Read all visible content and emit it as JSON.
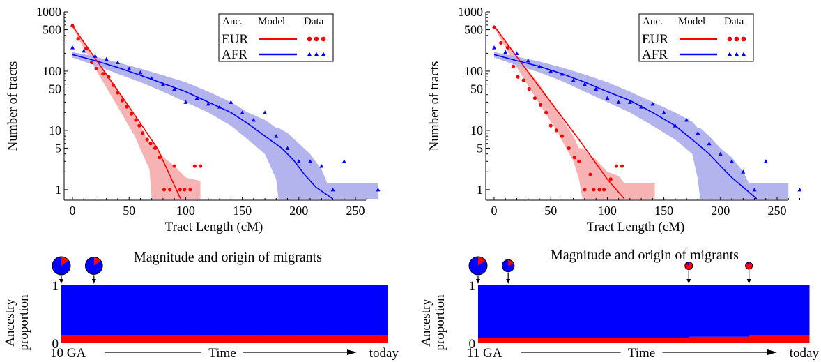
{
  "colors": {
    "eur": "#ff0000",
    "afr": "#0000ff",
    "eur_band": "#f7b3b3",
    "afr_band": "#b3b3ee",
    "axis": "#000000"
  },
  "chart_data": [
    {
      "type": "scatter",
      "yscale": "log",
      "xlabel": "Tract Length (cM)",
      "ylabel": "Number of tracts",
      "xlim": [
        -5,
        275
      ],
      "ylim": [
        0.7,
        1000
      ],
      "x_ticks": [
        0,
        50,
        100,
        150,
        200,
        250
      ],
      "y_ticks": [
        1,
        5,
        10,
        50,
        100,
        500,
        1000
      ],
      "legend": {
        "placement": "top-right",
        "headers": [
          "Anc.",
          "Model",
          "Data"
        ],
        "entries": [
          {
            "label": "EUR",
            "key": "eur"
          },
          {
            "label": "AFR",
            "key": "afr"
          }
        ]
      },
      "series": [
        {
          "name": "EUR",
          "key": "eur",
          "model_x": [
            0,
            25,
            50,
            75,
            95.5
          ],
          "model_y": [
            580,
            120,
            25,
            5,
            0.7
          ],
          "band_x": [
            0,
            20,
            40,
            55,
            68,
            70,
            80,
            90,
            100,
            113
          ],
          "band_upper": [
            600,
            170,
            50,
            17,
            6.5,
            6.5,
            3.6,
            2.5,
            1.6,
            1.4
          ],
          "band_lower": [
            540,
            110,
            25,
            8,
            2.2,
            0.7,
            0.7,
            0.7,
            0.7,
            0.7
          ],
          "data_x": [
            0,
            5,
            12,
            17,
            21,
            27,
            32,
            36,
            40,
            44,
            48,
            52,
            56,
            59,
            62,
            66,
            69,
            73,
            77,
            81,
            86,
            90,
            95,
            99,
            104,
            108,
            113
          ],
          "data_y": [
            580,
            350,
            240,
            140,
            110,
            90,
            80,
            58,
            43,
            32,
            25,
            19,
            15,
            12,
            9,
            7,
            6,
            5,
            3.5,
            1,
            1,
            2.5,
            1,
            1,
            1,
            2.5,
            2.5
          ]
        },
        {
          "name": "AFR",
          "key": "afr",
          "model_x": [
            0,
            20,
            40,
            60,
            80,
            100,
            120,
            140,
            155,
            170,
            185,
            195,
            205,
            215,
            230
          ],
          "model_y": [
            190,
            150,
            115,
            85,
            62,
            45,
            30,
            20,
            13,
            8,
            5,
            3.2,
            1.8,
            1.1,
            0.7
          ],
          "band_x": [
            0,
            20,
            40,
            60,
            80,
            100,
            120,
            140,
            155,
            170,
            180,
            182,
            190,
            200,
            210,
            220,
            225,
            230,
            270
          ],
          "band_upper": [
            210,
            175,
            140,
            110,
            85,
            65,
            45,
            30,
            20,
            15,
            11,
            11,
            9,
            6,
            4,
            2.2,
            1.3,
            1.3,
            1.3
          ],
          "band_lower": [
            170,
            125,
            90,
            65,
            45,
            30,
            20,
            12,
            7,
            4,
            1.5,
            0.7,
            0.7,
            0.7,
            0.7,
            0.7,
            0.7,
            0.7,
            0.7
          ],
          "data_x": [
            0,
            10,
            20,
            30,
            40,
            50,
            60,
            70,
            80,
            90,
            100,
            110,
            120,
            130,
            140,
            150,
            160,
            170,
            180,
            190,
            200,
            210,
            220,
            230,
            240,
            270
          ],
          "data_y": [
            250,
            220,
            180,
            160,
            140,
            110,
            95,
            75,
            60,
            50,
            30,
            35,
            28,
            25,
            30,
            20,
            15,
            20,
            8,
            5,
            3,
            3,
            2.5,
            1,
            3,
            1
          ]
        }
      ]
    },
    {
      "type": "scatter",
      "yscale": "log",
      "xlabel": "Tract Length (cM)",
      "ylabel": "Number of tracts",
      "xlim": [
        -5,
        275
      ],
      "ylim": [
        0.7,
        1000
      ],
      "x_ticks": [
        0,
        50,
        100,
        150,
        200,
        250
      ],
      "y_ticks": [
        1,
        5,
        10,
        50,
        100,
        500,
        1000
      ],
      "legend": {
        "placement": "top-right",
        "headers": [
          "Anc.",
          "Model",
          "Data"
        ],
        "entries": [
          {
            "label": "EUR",
            "key": "eur"
          },
          {
            "label": "AFR",
            "key": "afr"
          }
        ]
      },
      "series": [
        {
          "name": "EUR",
          "key": "eur",
          "model_x": [
            0,
            25,
            50,
            75,
            100,
            115
          ],
          "model_y": [
            580,
            130,
            30,
            7,
            1.5,
            0.7
          ],
          "band_x": [
            0,
            20,
            40,
            55,
            70,
            75,
            78,
            90,
            100,
            110,
            115,
            142
          ],
          "band_upper": [
            600,
            180,
            60,
            22,
            8,
            5,
            5,
            3.2,
            2,
            1.7,
            1.3,
            1.3
          ],
          "band_lower": [
            540,
            115,
            28,
            10,
            3,
            1.5,
            0.7,
            0.7,
            0.7,
            0.7,
            0.7,
            0.7
          ],
          "data_x": [
            0,
            6,
            12,
            17,
            21,
            26,
            31,
            36,
            41,
            46,
            50,
            55,
            60,
            66,
            71,
            75,
            80,
            85,
            88,
            93,
            97,
            103,
            108,
            113
          ],
          "data_y": [
            550,
            300,
            250,
            120,
            80,
            70,
            50,
            35,
            27,
            20,
            12,
            10,
            8,
            5,
            3.5,
            3,
            1,
            1.8,
            1,
            1,
            1,
            1.5,
            2.5,
            2.5
          ]
        },
        {
          "name": "AFR",
          "key": "afr",
          "model_x": [
            0,
            20,
            40,
            60,
            80,
            100,
            120,
            140,
            160,
            175,
            190,
            200,
            210,
            220,
            232
          ],
          "model_y": [
            190,
            150,
            120,
            90,
            65,
            45,
            32,
            20,
            12,
            7,
            4,
            2.5,
            1.6,
            1.1,
            0.7
          ],
          "band_x": [
            0,
            20,
            40,
            60,
            80,
            100,
            120,
            140,
            160,
            175,
            180,
            182,
            190,
            200,
            210,
            220,
            225,
            230,
            260
          ],
          "band_upper": [
            210,
            175,
            145,
            115,
            88,
            65,
            45,
            30,
            20,
            14,
            11,
            11,
            8,
            5,
            3.5,
            2,
            1.3,
            1.3,
            1.3
          ],
          "band_lower": [
            170,
            125,
            95,
            68,
            45,
            30,
            20,
            12,
            7,
            4,
            1.5,
            0.7,
            0.7,
            0.7,
            0.7,
            0.7,
            0.7,
            0.7,
            0.7
          ],
          "data_x": [
            0,
            10,
            20,
            30,
            40,
            50,
            60,
            70,
            80,
            90,
            100,
            110,
            120,
            130,
            140,
            150,
            160,
            170,
            180,
            190,
            200,
            210,
            220,
            230,
            240,
            270
          ],
          "data_y": [
            250,
            210,
            200,
            150,
            120,
            100,
            90,
            70,
            60,
            50,
            35,
            30,
            30,
            25,
            28,
            20,
            12,
            15,
            9,
            6,
            4,
            3,
            2,
            1,
            3,
            1
          ]
        }
      ]
    },
    {
      "type": "area",
      "title": "Magnitude and origin of migrants",
      "ylabel": "Ancestry proportion",
      "xlabel": "Time",
      "start_label": "10 GA",
      "end_label": "today",
      "y_ticks": [
        0,
        1
      ],
      "generations": 10,
      "eur_fraction": [
        0.14,
        0.14,
        0.14,
        0.14,
        0.14,
        0.14,
        0.14,
        0.14,
        0.14,
        0.14
      ],
      "migrations": [
        {
          "generation": 0,
          "relative_size": 1.0,
          "eur_share": 0.15
        },
        {
          "generation": 1,
          "relative_size": 0.9,
          "eur_share": 0.15
        }
      ]
    },
    {
      "type": "area",
      "title": "Magnitude and origin of migrants",
      "ylabel": "Ancestry proportion",
      "xlabel": "Time",
      "start_label": "11 GA",
      "end_label": "today",
      "y_ticks": [
        0,
        1
      ],
      "generations": 11,
      "eur_fraction": [
        0.09,
        0.09,
        0.09,
        0.09,
        0.09,
        0.09,
        0.09,
        0.11,
        0.11,
        0.135,
        0.135
      ],
      "migrations": [
        {
          "generation": 0,
          "relative_size": 1.0,
          "eur_share": 0.15
        },
        {
          "generation": 1,
          "relative_size": 0.45,
          "eur_share": 0.2
        },
        {
          "generation": 7,
          "relative_size": 0.18,
          "eur_share": 0.85
        },
        {
          "generation": 9,
          "relative_size": 0.15,
          "eur_share": 0.9
        }
      ]
    }
  ]
}
